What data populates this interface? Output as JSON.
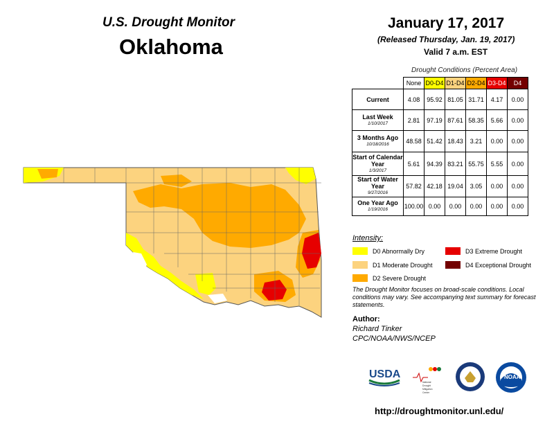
{
  "header": {
    "monitor_title": "U.S. Drought Monitor",
    "state": "Oklahoma",
    "date": "January 17, 2017",
    "released": "(Released Thursday, Jan. 19, 2017)",
    "valid": "Valid 7 a.m. EST"
  },
  "table": {
    "caption": "Drought Conditions (Percent Area)",
    "columns": [
      {
        "label": "None",
        "color": "#ffffff",
        "text_color": "#000000"
      },
      {
        "label": "D0-D4",
        "color": "#ffff00",
        "text_color": "#000000"
      },
      {
        "label": "D1-D4",
        "color": "#fcd37f",
        "text_color": "#000000"
      },
      {
        "label": "D2-D4",
        "color": "#ffaa00",
        "text_color": "#000000"
      },
      {
        "label": "D3-D4",
        "color": "#e60000",
        "text_color": "#ffffff"
      },
      {
        "label": "D4",
        "color": "#730000",
        "text_color": "#ffffff"
      }
    ],
    "rows": [
      {
        "label": "Current",
        "date": "",
        "values": [
          "4.08",
          "95.92",
          "81.05",
          "31.71",
          "4.17",
          "0.00"
        ]
      },
      {
        "label": "Last Week",
        "date": "1/10/2017",
        "values": [
          "2.81",
          "97.19",
          "87.61",
          "58.35",
          "5.66",
          "0.00"
        ]
      },
      {
        "label": "3 Months Ago",
        "date": "10/18/2016",
        "values": [
          "48.58",
          "51.42",
          "18.43",
          "3.21",
          "0.00",
          "0.00"
        ]
      },
      {
        "label": "Start of Calendar Year",
        "date": "1/3/2017",
        "values": [
          "5.61",
          "94.39",
          "83.21",
          "55.75",
          "5.55",
          "0.00"
        ]
      },
      {
        "label": "Start of Water Year",
        "date": "9/27/2016",
        "values": [
          "57.82",
          "42.18",
          "19.04",
          "3.05",
          "0.00",
          "0.00"
        ]
      },
      {
        "label": "One Year Ago",
        "date": "1/19/2016",
        "values": [
          "100.00",
          "0.00",
          "0.00",
          "0.00",
          "0.00",
          "0.00"
        ]
      }
    ]
  },
  "legend": {
    "title": "Intensity:",
    "items": [
      {
        "label": "D0 Abnormally Dry",
        "color": "#ffff00"
      },
      {
        "label": "D1 Moderate Drought",
        "color": "#fcd37f"
      },
      {
        "label": "D2 Severe Drought",
        "color": "#ffaa00"
      },
      {
        "label": "D3 Extreme Drought",
        "color": "#e60000"
      },
      {
        "label": "D4 Exceptional Drought",
        "color": "#730000"
      }
    ]
  },
  "note": "The Drought Monitor focuses on broad-scale conditions. Local conditions may vary. See accompanying text summary for forecast statements.",
  "author": {
    "label": "Author:",
    "name": "Richard Tinker",
    "org": "CPC/NOAA/NWS/NCEP"
  },
  "logos": {
    "usda": "USDA",
    "ndmc": "National Drought Mitigation Center",
    "noaa": "NOAA"
  },
  "url": "http://droughtmonitor.unl.edu/"
}
